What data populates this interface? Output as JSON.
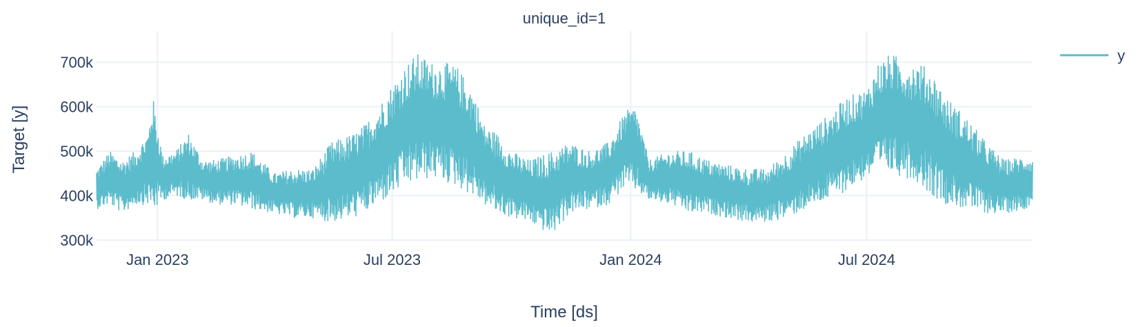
{
  "chart_data": {
    "type": "line",
    "title": "unique_id=1",
    "xlabel": "Time [ds]",
    "ylabel": "Target [y]",
    "x_range": [
      "2022-11-15",
      "2024-11-06"
    ],
    "ylim": [
      300000,
      770000
    ],
    "x_ticks": [
      {
        "date": "2023-01-01",
        "label": "Jan 2023"
      },
      {
        "date": "2023-07-01",
        "label": "Jul 2023"
      },
      {
        "date": "2024-01-01",
        "label": "Jan 2024"
      },
      {
        "date": "2024-07-01",
        "label": "Jul 2024"
      }
    ],
    "y_ticks": [
      {
        "value": 300000,
        "label": "300k"
      },
      {
        "value": 400000,
        "label": "400k"
      },
      {
        "value": 500000,
        "label": "500k"
      },
      {
        "value": 600000,
        "label": "600k"
      },
      {
        "value": 700000,
        "label": "700k"
      }
    ],
    "grid": true,
    "legend_placement": "top-right",
    "colors": {
      "series": "#5bbccc",
      "grid": "#ebf0f8",
      "text": "#2a3f5f"
    },
    "series": [
      {
        "name": "y",
        "color": "#5bbccc",
        "x": [
          "2022-11-15",
          "2022-11-25",
          "2022-12-05",
          "2022-12-15",
          "2022-12-25",
          "2022-12-28",
          "2023-01-05",
          "2023-01-15",
          "2023-01-25",
          "2023-02-05",
          "2023-02-15",
          "2023-03-01",
          "2023-03-15",
          "2023-04-01",
          "2023-04-15",
          "2023-05-01",
          "2023-05-15",
          "2023-06-01",
          "2023-06-10",
          "2023-06-20",
          "2023-07-01",
          "2023-07-10",
          "2023-07-20",
          "2023-08-01",
          "2023-08-10",
          "2023-08-20",
          "2023-09-01",
          "2023-09-10",
          "2023-09-20",
          "2023-10-01",
          "2023-10-15",
          "2023-11-01",
          "2023-11-15",
          "2023-12-01",
          "2023-12-15",
          "2023-12-28",
          "2024-01-05",
          "2024-01-15",
          "2024-02-01",
          "2024-02-15",
          "2024-03-01",
          "2024-03-15",
          "2024-04-01",
          "2024-04-15",
          "2024-05-01",
          "2024-05-15",
          "2024-06-01",
          "2024-06-15",
          "2024-07-01",
          "2024-07-10",
          "2024-07-20",
          "2024-08-01",
          "2024-08-10",
          "2024-08-20",
          "2024-09-01",
          "2024-09-15",
          "2024-10-01",
          "2024-10-15",
          "2024-11-01",
          "2024-11-06"
        ],
        "y_high": [
          460000,
          500000,
          480000,
          500000,
          545000,
          630000,
          490000,
          500000,
          540000,
          480000,
          480000,
          490000,
          500000,
          450000,
          460000,
          460000,
          520000,
          540000,
          560000,
          600000,
          650000,
          690000,
          720000,
          700000,
          700000,
          690000,
          640000,
          560000,
          540000,
          500000,
          480000,
          500000,
          520000,
          500000,
          520000,
          590000,
          600000,
          480000,
          500000,
          500000,
          480000,
          470000,
          460000,
          460000,
          500000,
          540000,
          580000,
          620000,
          640000,
          700000,
          720000,
          700000,
          700000,
          680000,
          620000,
          580000,
          520000,
          480000,
          490000,
          480000
        ],
        "y_low": [
          370000,
          380000,
          360000,
          380000,
          380000,
          360000,
          390000,
          400000,
          390000,
          390000,
          380000,
          380000,
          370000,
          360000,
          350000,
          350000,
          340000,
          350000,
          360000,
          380000,
          400000,
          420000,
          430000,
          440000,
          430000,
          420000,
          400000,
          380000,
          360000,
          350000,
          340000,
          310000,
          360000,
          370000,
          380000,
          420000,
          410000,
          390000,
          380000,
          360000,
          360000,
          350000,
          340000,
          340000,
          350000,
          370000,
          390000,
          410000,
          440000,
          450000,
          450000,
          440000,
          430000,
          400000,
          380000,
          370000,
          360000,
          360000,
          370000,
          390000
        ]
      }
    ]
  }
}
